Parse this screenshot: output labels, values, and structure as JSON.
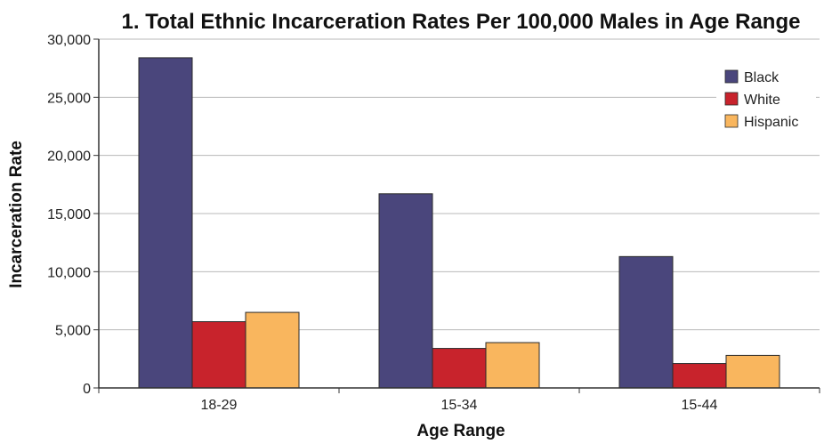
{
  "chart_data": {
    "type": "bar",
    "title": "1. Total Ethnic Incarceration Rates Per 100,000 Males in Age Range",
    "xlabel": "Age Range",
    "ylabel": "Incarceration Rate",
    "categories": [
      "18-29",
      "15-34",
      "15-44"
    ],
    "series": [
      {
        "name": "Black",
        "color": "#4a467c",
        "values": [
          28400,
          16700,
          11300
        ]
      },
      {
        "name": "White",
        "color": "#c8232c",
        "values": [
          5700,
          3400,
          2100
        ]
      },
      {
        "name": "Hispanic",
        "color": "#f9b65e",
        "values": [
          6500,
          3900,
          2800
        ]
      }
    ],
    "ylim": [
      0,
      30000
    ],
    "yticks": [
      0,
      5000,
      10000,
      15000,
      20000,
      25000,
      30000
    ],
    "ytick_labels": [
      "0",
      "5,000",
      "10,000",
      "15,000",
      "20,000",
      "25,000",
      "30,000"
    ],
    "grid": true,
    "legend_position": "top-right"
  }
}
